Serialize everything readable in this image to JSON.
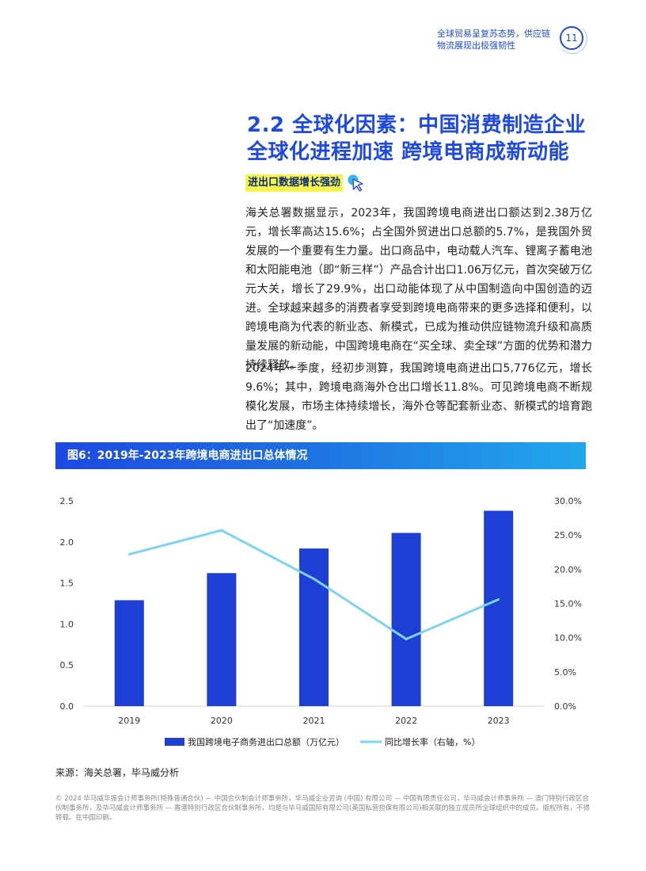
{
  "header": {
    "line1": "全球贸易呈复苏态势，供应链",
    "line2": "物流展现出极强韧性",
    "page_number": "11"
  },
  "section": {
    "title_line1": "2.2 全球化因素：中国消费制造企业",
    "title_line2": "全球化进程加速 跨境电商成新动能",
    "tag": "进出口数据增长强劲",
    "tag_icon": "cursor-click-icon"
  },
  "paragraphs": [
    "海关总署数据显示，2023年，我国跨境电商进出口额达到2.38万亿元，增长率高达15.6%；占全国外贸进出口总额的5.7%，是我国外贸发展的一个重要有生力量。出口商品中，电动载人汽车、锂离子蓄电池和太阳能电池（即“新三样”）产品合计出口1.06万亿元，首次突破万亿元大关，增长了29.9%，出口动能体现了从中国制造向中国创造的迈进。全球越来越多的消费者享受到跨境电商带来的更多选择和便利，以跨境电商为代表的新业态、新模式，已成为推动供应链物流升级和高质量发展的新动能，中国跨境电商在“买全球、卖全球”方面的优势和潜力持续释放。",
    "2024年一季度，经初步测算，我国跨境电商进出口5,776亿元，增长9.6%；其中，跨境电商海外仓出口增长11.8%。可见跨境电商不断规模化发展，市场主体持续增长，海外仓等配套新业态、新模式的培育跑出了“加速度”。"
  ],
  "figure": {
    "title": "图6：2019年-2023年跨境电商进出口总体情况"
  },
  "chart_data": {
    "type": "bar",
    "categories": [
      "2019",
      "2020",
      "2021",
      "2022",
      "2023"
    ],
    "series": [
      {
        "name": "我国跨境电子商务进出口总额（万亿元）",
        "type": "bar",
        "axis": "left",
        "values": [
          1.29,
          1.62,
          1.92,
          2.11,
          2.38
        ],
        "color": "#1E3FD6"
      },
      {
        "name": "同比增长率（右轴，%）",
        "type": "line",
        "axis": "right",
        "values": [
          22.2,
          25.7,
          18.6,
          9.8,
          15.6
        ],
        "color": "#7DD3F2"
      }
    ],
    "y_left": {
      "min": 0,
      "max": 2.5,
      "ticks": [
        "0.0",
        "0.5",
        "1.0",
        "1.5",
        "2.0",
        "2.5"
      ]
    },
    "y_right": {
      "min": 0,
      "max": 30,
      "ticks": [
        "0.0%",
        "5.0%",
        "10.0%",
        "15.0%",
        "20.0%",
        "25.0%",
        "30.0%"
      ]
    },
    "grid": false,
    "legend_position": "bottom"
  },
  "source": "来源：海关总署，毕马威分析",
  "footer": "© 2024 毕马威华振会计师事务所(特殊普通合伙) — 中国合伙制会计师事务所，毕马威企业咨询 (中国) 有限公司 — 中国有限责任公司，毕马威会计师事务所 — 澳门特别行政区合伙制事务所，及毕马威会计师事务所 — 香港特别行政区合伙制事务所，均是与毕马威国际有限公司(英国私营担保有限公司)相关联的独立成员所全球组织中的成员。版权所有，不得转载。在中国印刷。"
}
